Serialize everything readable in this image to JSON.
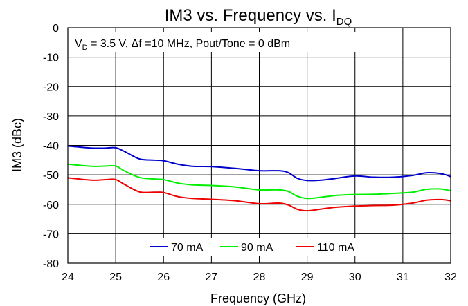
{
  "chart_data": {
    "type": "line",
    "title": "IM3 vs. Frequency vs. I",
    "title_subscript": "DQ",
    "annotation": {
      "v": "V",
      "v_sub": "D",
      "rest": " = 3.5 V, Δf =10 MHz, Pout/Tone = 0 dBm"
    },
    "xlabel": "Frequency (GHz)",
    "ylabel": "IM3 (dBc)",
    "xlim": [
      24,
      32
    ],
    "ylim": [
      -80,
      0
    ],
    "xticks": [
      24,
      25,
      26,
      27,
      28,
      29,
      30,
      31,
      32
    ],
    "yticks": [
      0,
      -10,
      -20,
      -30,
      -40,
      -50,
      -60,
      -70,
      -80
    ],
    "grid": true,
    "legend_position": "bottom-center",
    "series": [
      {
        "name": "70 mA",
        "color": "#0000CC",
        "x": [
          24,
          24.5,
          24.8,
          25,
          25.2,
          25.5,
          25.8,
          26,
          26.3,
          26.6,
          27,
          27.5,
          28,
          28.4,
          28.6,
          28.8,
          29,
          29.3,
          29.6,
          30,
          30.4,
          30.8,
          31.2,
          31.5,
          31.8,
          32
        ],
        "y": [
          -40.2,
          -40.9,
          -40.9,
          -40.8,
          -42.2,
          -44.6,
          -45.0,
          -45.2,
          -46.4,
          -47.1,
          -47.2,
          -47.8,
          -48.6,
          -48.6,
          -49.2,
          -51.2,
          -51.9,
          -51.8,
          -51.2,
          -50.4,
          -50.8,
          -50.8,
          -50.2,
          -49.3,
          -49.6,
          -50.6
        ]
      },
      {
        "name": "90 mA",
        "color": "#00EE00",
        "x": [
          24,
          24.5,
          24.8,
          25,
          25.2,
          25.5,
          25.8,
          26,
          26.3,
          26.6,
          27,
          27.5,
          28,
          28.4,
          28.6,
          28.8,
          29,
          29.3,
          29.6,
          30,
          30.4,
          30.8,
          31.2,
          31.5,
          31.8,
          32
        ],
        "y": [
          -46.4,
          -47.1,
          -47.0,
          -47.0,
          -48.8,
          -50.9,
          -51.4,
          -51.6,
          -52.8,
          -53.4,
          -53.6,
          -54.1,
          -55.1,
          -55.1,
          -55.6,
          -57.3,
          -58.0,
          -57.6,
          -57.0,
          -56.7,
          -56.6,
          -56.3,
          -55.9,
          -54.9,
          -54.8,
          -55.4
        ]
      },
      {
        "name": "110 mA",
        "color": "#EE0000",
        "x": [
          24,
          24.5,
          24.8,
          25,
          25.2,
          25.5,
          25.8,
          26,
          26.3,
          26.6,
          27,
          27.5,
          28,
          28.4,
          28.6,
          28.8,
          29,
          29.3,
          29.6,
          30,
          30.4,
          30.8,
          31.2,
          31.5,
          31.8,
          32
        ],
        "y": [
          -51.0,
          -51.8,
          -51.6,
          -51.6,
          -53.4,
          -55.8,
          -55.9,
          -56.0,
          -57.4,
          -58.0,
          -58.3,
          -58.8,
          -59.8,
          -59.6,
          -60.2,
          -61.7,
          -62.2,
          -61.6,
          -61.0,
          -60.6,
          -60.4,
          -60.3,
          -59.6,
          -58.6,
          -58.4,
          -58.8
        ]
      }
    ]
  }
}
